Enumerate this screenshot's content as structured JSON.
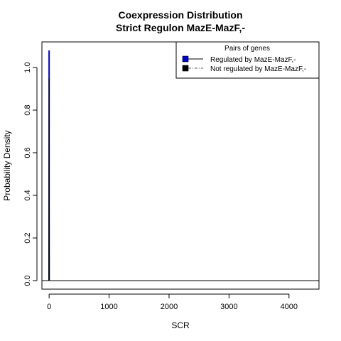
{
  "chart_data": {
    "type": "line",
    "title": "Coexpression Distribution",
    "subtitle": "Strict Regulon MazE-MazF,-",
    "xlabel": "SCR",
    "ylabel": "Probability Density",
    "xlim": [
      -120,
      4500
    ],
    "ylim": [
      -0.04,
      1.12
    ],
    "x_ticks": [
      0,
      1000,
      2000,
      3000,
      4000
    ],
    "x_tick_labels": [
      "0",
      "1000",
      "2000",
      "3000",
      "4000"
    ],
    "y_ticks": [
      0.0,
      0.2,
      0.4,
      0.6,
      0.8,
      1.0
    ],
    "y_tick_labels": [
      "0.0",
      "0.2",
      "0.4",
      "0.6",
      "0.8",
      "1.0"
    ],
    "grid": false,
    "legend": {
      "title": "Pairs of genes",
      "placement": "top-right",
      "entries": [
        {
          "label": "Regulated by  MazE-MazF,-",
          "color": "#0000cc",
          "line": "solid"
        },
        {
          "label": "Not regulated by  MazE-MazF,-",
          "color": "#000000",
          "line": "dashdot"
        }
      ]
    },
    "series": [
      {
        "name": "Regulated by  MazE-MazF,-",
        "color": "#0000cc",
        "points": [
          [
            0,
            0
          ],
          [
            0,
            1.08
          ],
          [
            0,
            0.0
          ]
        ]
      },
      {
        "name": "Not regulated by  MazE-MazF,-",
        "color": "#000000",
        "points": [
          [
            -5,
            0.0
          ],
          [
            0,
            0.95
          ],
          [
            5,
            0.0
          ]
        ]
      }
    ],
    "baseline": 0
  }
}
